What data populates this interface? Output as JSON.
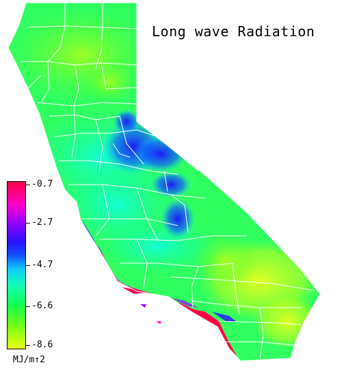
{
  "title": "Long wave Radiation",
  "legend": {
    "ticks": [
      "-0.7",
      "-2.7",
      "-4.7",
      "-6.6",
      "-8.6"
    ],
    "unit": "MJ/m↑2"
  },
  "colors": {
    "high": "#ff0044",
    "magenta": "#ff00cc",
    "violet": "#9a00ff",
    "blue": "#2c10ff",
    "cyan": "#10c8ff",
    "aqua": "#10ffb4",
    "green": "#10ff50",
    "lime": "#70ff10",
    "low": "#eaff10",
    "boundary": "#ffffff"
  }
}
